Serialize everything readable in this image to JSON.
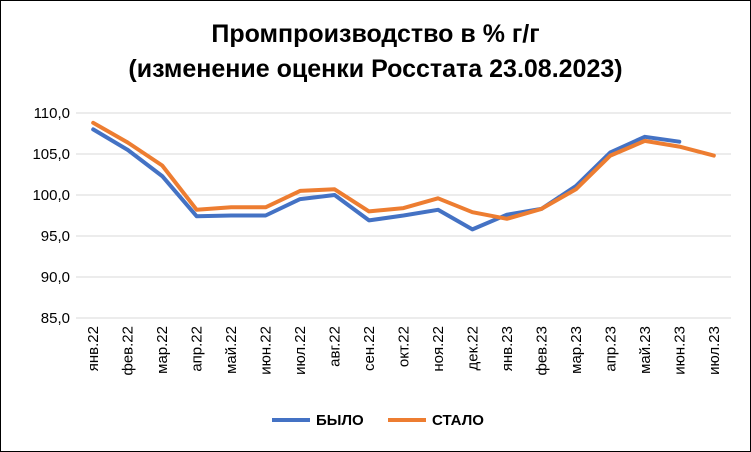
{
  "chart_data": {
    "type": "line",
    "title_line_1": "Промпроизводство в % г/г",
    "title_line_2": "(изменение оценки Росстата 23.08.2023)",
    "categories": [
      "янв.22",
      "фев.22",
      "мар.22",
      "апр.22",
      "май.22",
      "июн.22",
      "июл.22",
      "авг.22",
      "сен.22",
      "окт.22",
      "ноя.22",
      "дек.22",
      "янв.23",
      "фев.23",
      "мар.23",
      "апр.23",
      "май.23",
      "июн.23",
      "июл.23"
    ],
    "yticks": [
      "85,0",
      "90,0",
      "95,0",
      "100,0",
      "105,0",
      "110,0"
    ],
    "ylim": [
      85,
      110
    ],
    "grid": true,
    "legend_position": "bottom",
    "series": [
      {
        "name": "БЫЛО",
        "color": "#4472C4",
        "values": [
          108.0,
          105.5,
          102.3,
          97.4,
          97.5,
          97.5,
          99.5,
          100.0,
          96.9,
          97.5,
          98.2,
          95.8,
          97.6,
          98.3,
          101.1,
          105.2,
          107.1,
          106.5,
          null
        ]
      },
      {
        "name": "СТАЛО",
        "color": "#ED7D31",
        "values": [
          108.8,
          106.4,
          103.6,
          98.2,
          98.5,
          98.5,
          100.5,
          100.7,
          98.0,
          98.4,
          99.6,
          97.9,
          97.1,
          98.3,
          100.7,
          104.8,
          106.6,
          105.9,
          104.8
        ]
      }
    ]
  }
}
